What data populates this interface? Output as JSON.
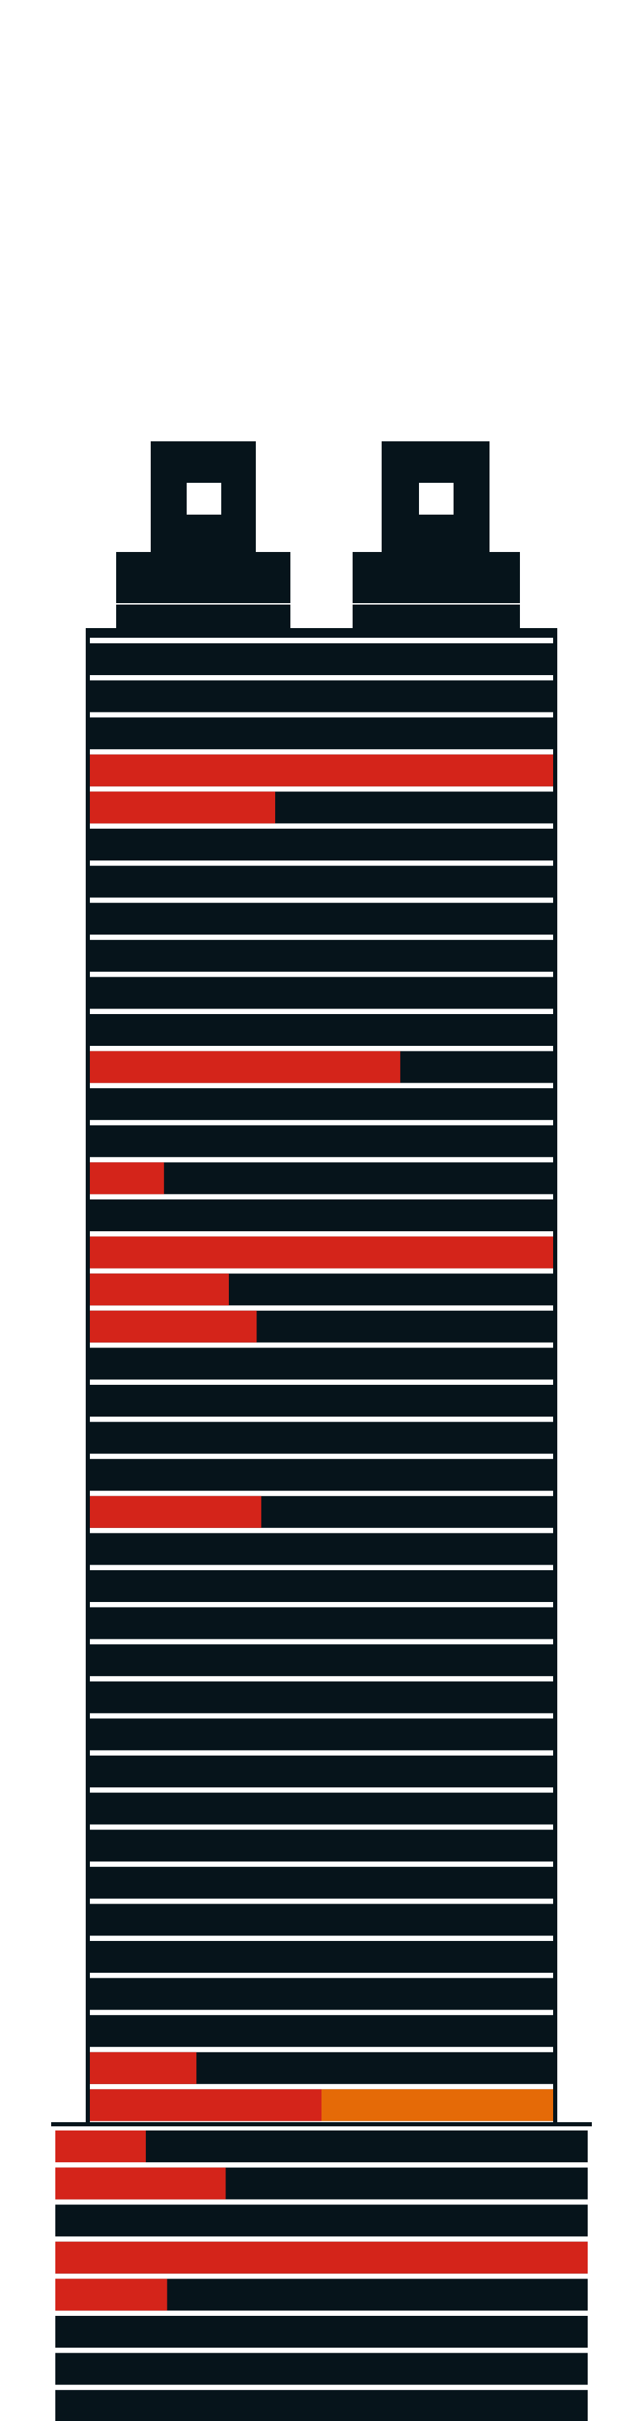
{
  "colors": {
    "background": "#ffffff",
    "dark": "#06141b",
    "separator": "#e8eaee",
    "red": "#d4241a",
    "orange": "#e56a07"
  },
  "tower": {
    "floors": [
      {
        "red": 0
      },
      {
        "red": 0
      },
      {
        "red": 0
      },
      {
        "red": 1
      },
      {
        "red": 0.4
      },
      {
        "red": 0
      },
      {
        "red": 0
      },
      {
        "red": 0
      },
      {
        "red": 0
      },
      {
        "red": 0
      },
      {
        "red": 0
      },
      {
        "red": 0.67
      },
      {
        "red": 0
      },
      {
        "red": 0
      },
      {
        "red": 0.16
      },
      {
        "red": 0
      },
      {
        "red": 1
      },
      {
        "red": 0.3
      },
      {
        "red": 0.36
      },
      {
        "red": 0
      },
      {
        "red": 0
      },
      {
        "red": 0
      },
      {
        "red": 0
      },
      {
        "red": 0.37
      },
      {
        "red": 0
      },
      {
        "red": 0
      },
      {
        "red": 0
      },
      {
        "red": 0
      },
      {
        "red": 0
      },
      {
        "red": 0
      },
      {
        "red": 0
      },
      {
        "red": 0
      },
      {
        "red": 0
      },
      {
        "red": 0
      },
      {
        "red": 0
      },
      {
        "red": 0
      },
      {
        "red": 0
      },
      {
        "red": 0
      },
      {
        "red": 0.23
      },
      {
        "red": 0.5,
        "orange": 0.5
      }
    ],
    "podium_floors": [
      {
        "red": 0.17
      },
      {
        "red": 0.32
      },
      {
        "red": 0
      },
      {
        "red": 1
      },
      {
        "red": 0.21
      },
      {
        "red": 0
      },
      {
        "red": 0
      },
      {
        "red": 0
      }
    ]
  }
}
